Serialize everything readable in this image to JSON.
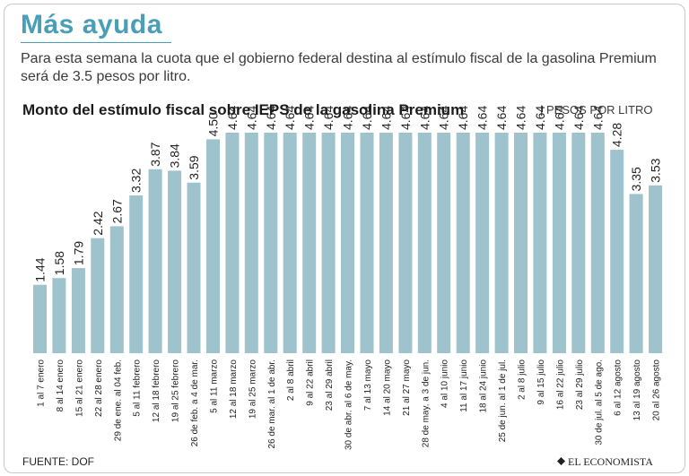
{
  "header": {
    "title": "Más ayuda",
    "subtitle": "Para esta semana la cuota que el gobierno federal destina al estímulo fiscal de la gasolina Premium será de 3.5 pesos por litro."
  },
  "footer": {
    "source": "FUENTE: DOF",
    "brand": "EL ECONOMISTA"
  },
  "colors": {
    "bar": "#9fc3cc",
    "highlight_bar": "#0a7ea0",
    "title": "#4a9fb8"
  },
  "chart_data": {
    "type": "bar",
    "title": "Monto del estímulo fiscal sobre IEPS de la gasolina Premium",
    "unit_label": "| PESOS POR LITRO",
    "xlabel": "",
    "ylabel": "Pesos por litro",
    "ylim": [
      0,
      4.64
    ],
    "grid": false,
    "highlight_index": 34,
    "categories": [
      "1 al 7 enero",
      "8 al 14 enero",
      "15 al 21 enero",
      "22 al 28 enero",
      "29 de ene. al 04 feb.",
      "5 al 11 febrero",
      "12 al 18 febrero",
      "19 al 25 febrero",
      "26 de feb. a 4 de mar.",
      "5 al 11 marzo",
      "12 al 18 marzo",
      "19 al 25 marzo",
      "26 de mar. al 1 de abr.",
      "2 al 8 abril",
      "9 al 22 abril",
      "23 al 29 abril",
      "30 de abr. al 6 de may.",
      "7 al 13 mayo",
      "14 al 20 mayo",
      "21 al 27 mayo",
      "28 de may. a 3 de jun.",
      "4 al 10 junio",
      "11 al 17 junio",
      "18 al 24 junio",
      "25 de jun. al 1 de jul.",
      "2 al 8 julio",
      "9 al 15 julio",
      "16 al 22 julio",
      "23 al 29 julio",
      "30 de jul. al 5 de ago.",
      "6 al 12 agosto",
      "13 al 19 agosto",
      "20 al 26 agosto"
    ],
    "values": [
      1.44,
      1.58,
      1.79,
      2.42,
      2.67,
      3.32,
      3.87,
      3.84,
      3.59,
      4.5,
      4.64,
      4.64,
      4.64,
      4.64,
      4.64,
      4.64,
      4.64,
      4.64,
      4.64,
      4.64,
      4.64,
      4.64,
      4.64,
      4.64,
      4.64,
      4.64,
      4.64,
      4.64,
      4.64,
      4.64,
      4.28,
      3.35,
      3.53
    ],
    "value_labels": [
      "1.44",
      "1.58",
      "1.79",
      "2.42",
      "2.67",
      "3.32",
      "3.87",
      "3.84",
      "3.59",
      "4.50",
      "4.64",
      "4.64",
      "4.64",
      "4.64",
      "4.64",
      "4.64",
      "4.64",
      "4.64",
      "4.64",
      "4.64",
      "4.64",
      "4.64",
      "4.64",
      "4.64",
      "4.64",
      "4.64",
      "4.64",
      "4.64",
      "4.64",
      "4.64",
      "4.28",
      "3.35",
      "3.53"
    ]
  }
}
